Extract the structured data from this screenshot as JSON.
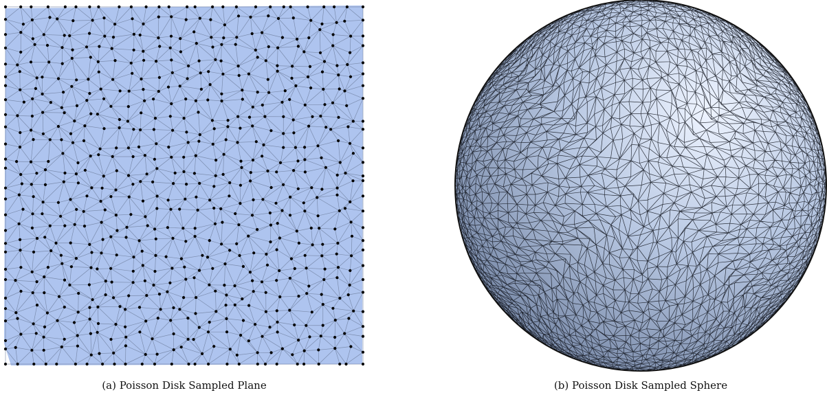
{
  "figure": {
    "panels": [
      {
        "caption": "(a) Poisson Disk Sampled Plane"
      },
      {
        "caption": "(b) Poisson Disk Sampled Sphere"
      }
    ]
  }
}
